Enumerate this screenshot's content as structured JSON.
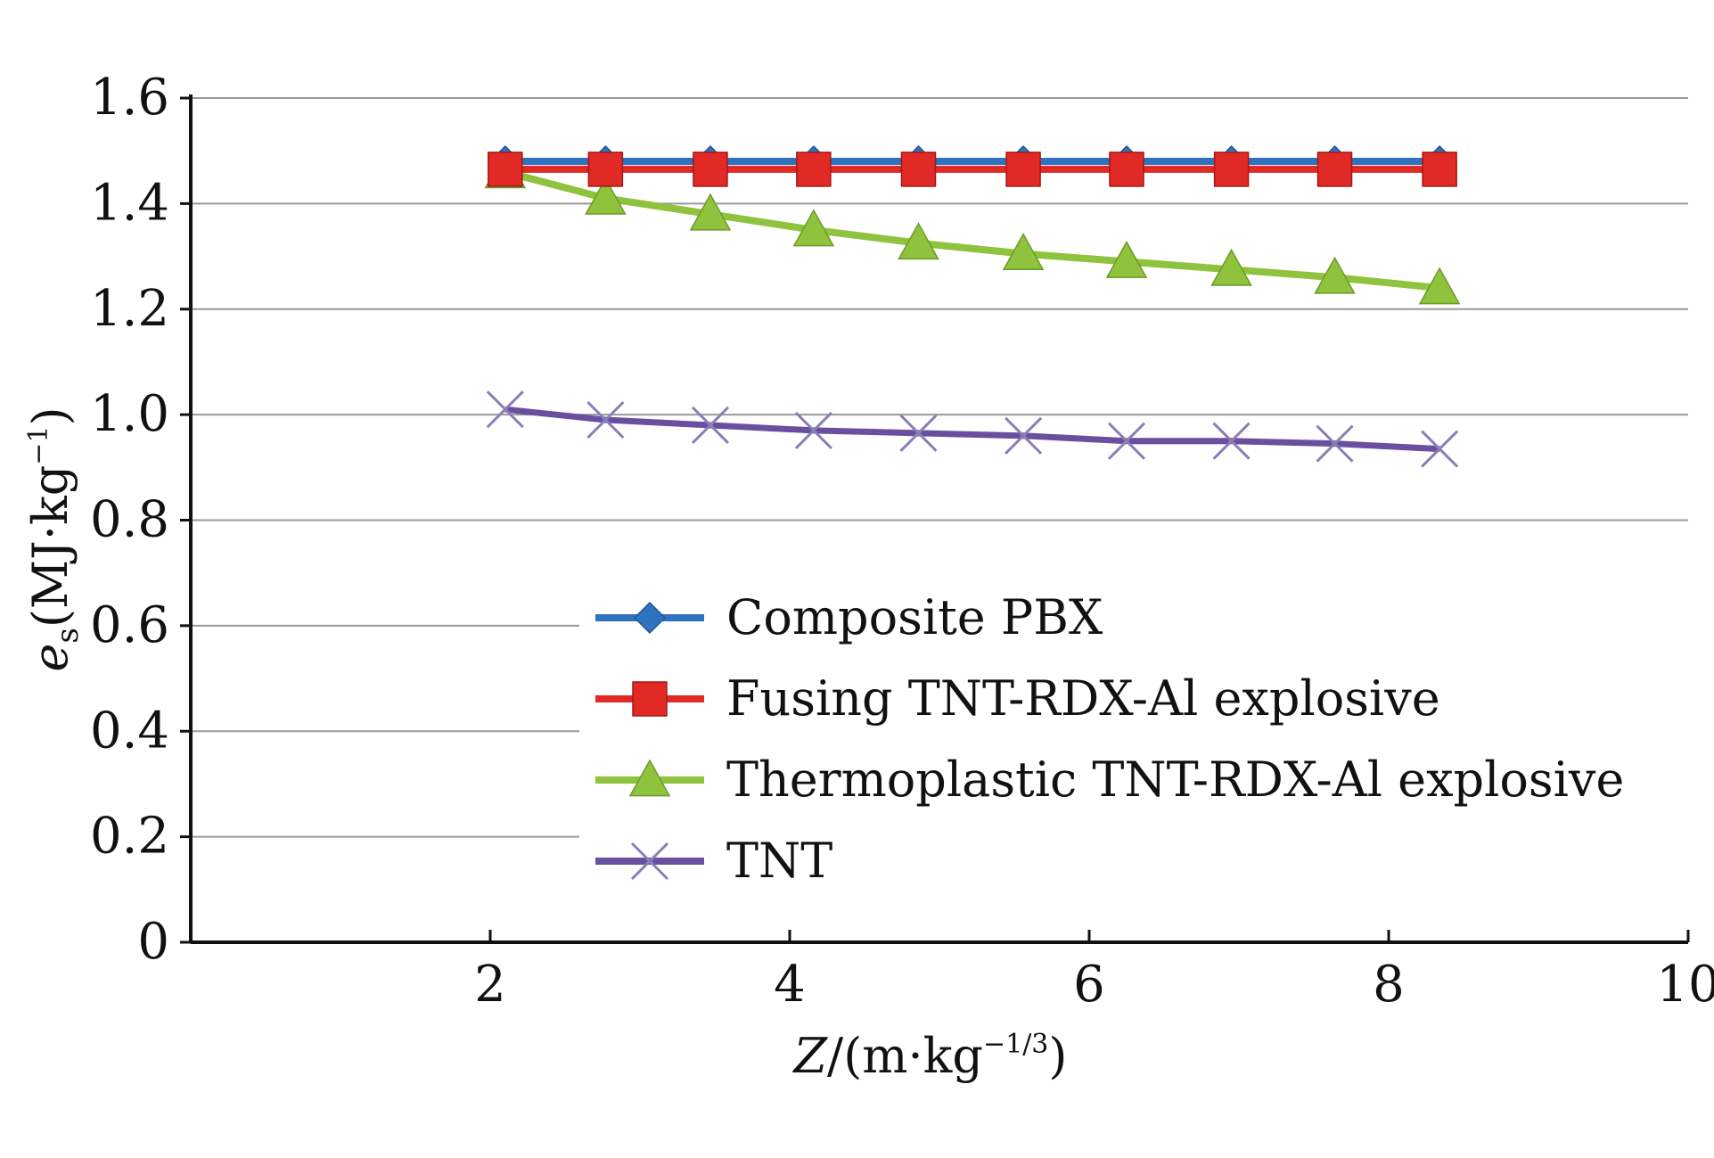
{
  "chart_data": {
    "type": "line",
    "x": [
      2.1,
      2.77,
      3.47,
      4.16,
      4.86,
      5.56,
      6.25,
      6.95,
      7.64,
      8.34
    ],
    "xlim": [
      0,
      10
    ],
    "ylim": [
      0,
      1.6
    ],
    "x_ticks": [
      "2",
      "4",
      "6",
      "8",
      "10"
    ],
    "y_ticks": [
      "0",
      "0.2",
      "0.4",
      "0.6",
      "0.8",
      "1.0",
      "1.2",
      "1.4",
      "1.6"
    ],
    "xlabel": "Z/(m·kg⁻¹/³)",
    "ylabel": "eₛ(MJ·kg⁻¹)",
    "xlabel_parts": {
      "var": "Z",
      "unit_open": "/(m·kg",
      "unit_exp": "−1/3",
      "unit_close": ")"
    },
    "ylabel_parts": {
      "var": "e",
      "sub": "s",
      "unit_open": "(MJ·kg",
      "unit_exp": "−1",
      "unit_close": ")"
    },
    "grid": true,
    "legend_position": "lower-center",
    "series": [
      {
        "name": "Composite PBX",
        "color": "#2f73c0",
        "marker": "diamond",
        "values": [
          1.48,
          1.48,
          1.48,
          1.48,
          1.48,
          1.48,
          1.48,
          1.48,
          1.48,
          1.48
        ]
      },
      {
        "name": "Fusing TNT-RDX-Al explosive",
        "color": "#e12a26",
        "marker": "square",
        "values": [
          1.465,
          1.465,
          1.465,
          1.465,
          1.465,
          1.465,
          1.465,
          1.465,
          1.465,
          1.465
        ]
      },
      {
        "name": "Thermoplastic TNT-RDX-Al explosive",
        "color": "#8fc33d",
        "marker": "triangle",
        "values": [
          1.46,
          1.41,
          1.38,
          1.35,
          1.325,
          1.305,
          1.29,
          1.275,
          1.26,
          1.24
        ]
      },
      {
        "name": "TNT",
        "color": "#6a4fa0",
        "marker": "x",
        "values": [
          1.01,
          0.99,
          0.98,
          0.97,
          0.965,
          0.96,
          0.95,
          0.95,
          0.945,
          0.935
        ]
      }
    ]
  }
}
